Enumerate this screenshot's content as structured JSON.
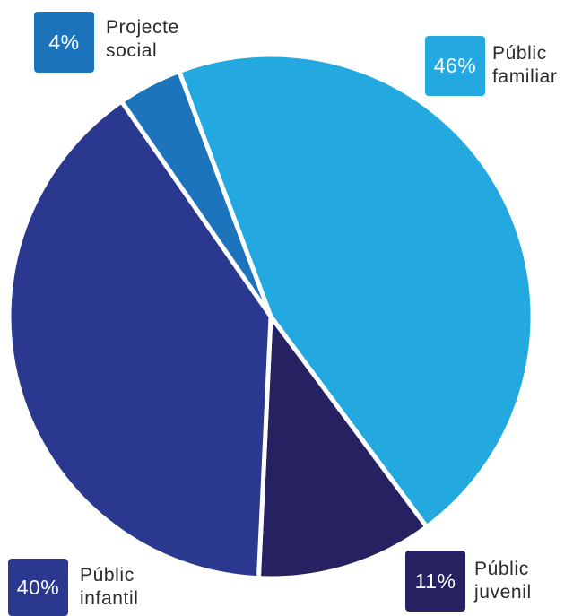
{
  "chart_data": {
    "type": "pie",
    "slices": [
      {
        "key": "public-familiar",
        "name": "Públic\nfamiliar",
        "value": 46,
        "value_label": "46%",
        "color": "#23a8e0"
      },
      {
        "key": "public-juvenil",
        "name": "Públic\njuvenil",
        "value": 11,
        "value_label": "11%",
        "color": "#262262"
      },
      {
        "key": "public-infantil",
        "name": "Públic\ninfantil",
        "value": 40,
        "value_label": "40%",
        "color": "#2b388f"
      },
      {
        "key": "projecte-social",
        "name": "Projecte\nsocial",
        "value": 4,
        "value_label": "4%",
        "color": "#1c75bc"
      }
    ]
  }
}
